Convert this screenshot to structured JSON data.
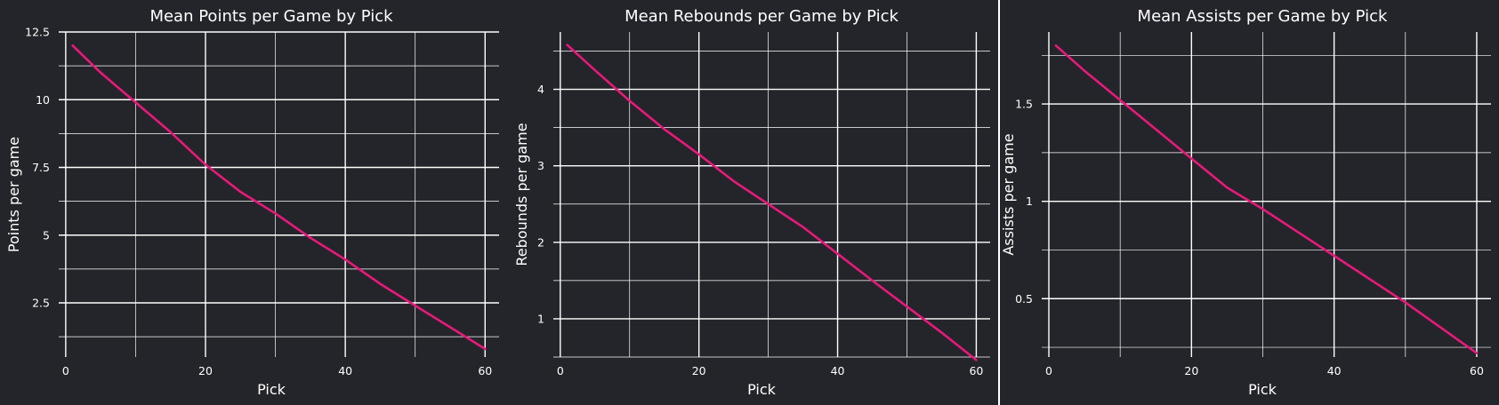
{
  "colors": {
    "background": "#24252a",
    "line": "#e8197a",
    "grid": "#ffffff",
    "text": "#ffffff"
  },
  "chart_data": [
    {
      "type": "line",
      "title": "Mean Points per Game by Pick",
      "xlabel": "Pick",
      "ylabel": "Points per game",
      "xlim": [
        -1,
        62
      ],
      "ylim": [
        0.5,
        12.5
      ],
      "xticks": [
        0,
        20,
        40,
        60
      ],
      "xtick_labels": [
        "0",
        "20",
        "40",
        "60"
      ],
      "x_minor_ticks": [
        10,
        30,
        50
      ],
      "yticks": [
        2.5,
        5,
        7.5,
        10,
        12.5
      ],
      "ytick_labels": [
        "2.5",
        "5",
        "7.5",
        "10",
        "12.5"
      ],
      "y_minor_ticks": [
        1.25,
        3.75,
        6.25,
        8.75,
        11.25
      ],
      "grid": true,
      "series": [
        {
          "x": [
            1,
            5,
            10,
            15,
            20,
            25,
            30,
            35,
            40,
            45,
            50,
            55,
            60
          ],
          "y": [
            12.0,
            11.0,
            9.9,
            8.8,
            7.6,
            6.6,
            5.8,
            4.9,
            4.1,
            3.2,
            2.4,
            1.6,
            0.8
          ]
        }
      ]
    },
    {
      "type": "line",
      "title": "Mean Rebounds per Game by Pick",
      "xlabel": "Pick",
      "ylabel": "Rebounds per game",
      "xlim": [
        -1,
        62
      ],
      "ylim": [
        0.5,
        4.75
      ],
      "xticks": [
        0,
        20,
        40,
        60
      ],
      "xtick_labels": [
        "0",
        "20",
        "40",
        "60"
      ],
      "x_minor_ticks": [
        10,
        30,
        50
      ],
      "yticks": [
        1,
        2,
        3,
        4
      ],
      "ytick_labels": [
        "1",
        "2",
        "3",
        "4"
      ],
      "y_minor_ticks": [
        0.5,
        1.5,
        2.5,
        3.5,
        4.5
      ],
      "grid": true,
      "series": [
        {
          "x": [
            1,
            5,
            10,
            15,
            20,
            25,
            30,
            35,
            40,
            45,
            50,
            55,
            60
          ],
          "y": [
            4.58,
            4.25,
            3.85,
            3.48,
            3.15,
            2.8,
            2.5,
            2.2,
            1.85,
            1.5,
            1.16,
            0.82,
            0.46
          ]
        }
      ]
    },
    {
      "type": "line",
      "title": "Mean Assists per Game by Pick",
      "xlabel": "Pick",
      "ylabel": "Assists per game",
      "xlim": [
        -1,
        62
      ],
      "ylim": [
        0.2,
        1.87
      ],
      "xticks": [
        0,
        20,
        40,
        60
      ],
      "xtick_labels": [
        "0",
        "20",
        "40",
        "60"
      ],
      "x_minor_ticks": [
        10,
        30,
        50
      ],
      "yticks": [
        0.5,
        1,
        1.5
      ],
      "ytick_labels": [
        "0.5",
        "1",
        "1.5"
      ],
      "y_minor_ticks": [
        0.25,
        0.75,
        1.25,
        1.75
      ],
      "grid": true,
      "series": [
        {
          "x": [
            1,
            5,
            10,
            15,
            20,
            25,
            30,
            35,
            40,
            45,
            50,
            55,
            60
          ],
          "y": [
            1.8,
            1.67,
            1.52,
            1.37,
            1.22,
            1.07,
            0.96,
            0.84,
            0.72,
            0.6,
            0.48,
            0.35,
            0.22
          ]
        }
      ]
    }
  ]
}
